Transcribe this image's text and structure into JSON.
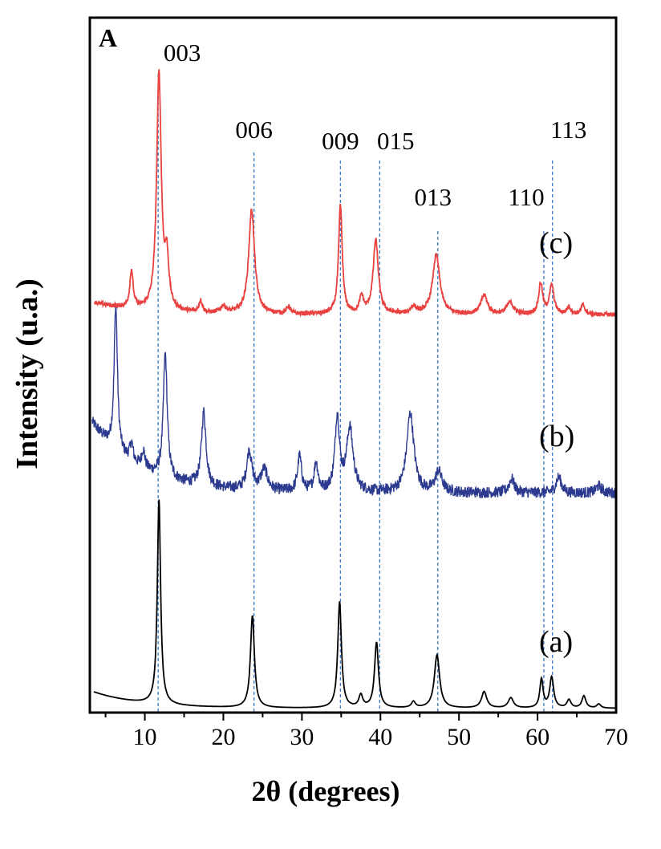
{
  "chart_data": {
    "type": "line",
    "panel_label": "A",
    "xlabel": "2θ (degrees)",
    "ylabel": "Intensity (u.a.)",
    "xlim": [
      3,
      70
    ],
    "x_ticks": [
      10,
      20,
      30,
      40,
      50,
      60,
      70
    ],
    "y_ticks_shown": false,
    "grid": false,
    "reference_lines": [
      {
        "label": "003",
        "x": 11.7
      },
      {
        "label": "006",
        "x": 23.9
      },
      {
        "label": "009",
        "x": 34.9
      },
      {
        "label": "015",
        "x": 39.9
      },
      {
        "label": "013",
        "x": 47.3
      },
      {
        "label": "110",
        "x": 60.8
      },
      {
        "label": "113",
        "x": 61.9
      }
    ],
    "series": [
      {
        "name": "(a)",
        "color": "#000000",
        "baseline": 0.5,
        "noise": 0.0,
        "peaks": [
          [
            11.8,
            100,
            0.25
          ],
          [
            23.7,
            45,
            0.3
          ],
          [
            34.8,
            52,
            0.28
          ],
          [
            37.5,
            6,
            0.3
          ],
          [
            39.5,
            32,
            0.3
          ],
          [
            44.2,
            3,
            0.3
          ],
          [
            47.2,
            26,
            0.4
          ],
          [
            53.2,
            8,
            0.4
          ],
          [
            56.6,
            5,
            0.4
          ],
          [
            60.5,
            14,
            0.25
          ],
          [
            61.8,
            15,
            0.3
          ],
          [
            64.0,
            4,
            0.3
          ],
          [
            65.9,
            6,
            0.3
          ],
          [
            67.8,
            2,
            0.3
          ]
        ],
        "slope_start": 8
      },
      {
        "name": "(b)",
        "color": "#2b3a8f",
        "baseline": 8,
        "noise": 3.2,
        "peaks": [
          [
            6.3,
            82,
            0.25
          ],
          [
            8.3,
            10,
            0.25
          ],
          [
            9.8,
            10,
            0.25
          ],
          [
            12.6,
            70,
            0.3
          ],
          [
            17.5,
            42,
            0.35
          ],
          [
            23.3,
            22,
            0.4
          ],
          [
            25.2,
            12,
            0.5
          ],
          [
            29.7,
            20,
            0.3
          ],
          [
            31.8,
            16,
            0.3
          ],
          [
            34.5,
            42,
            0.35
          ],
          [
            36.1,
            36,
            0.5
          ],
          [
            43.8,
            45,
            0.55
          ],
          [
            47.4,
            12,
            0.5
          ],
          [
            56.7,
            8,
            0.4
          ],
          [
            62.7,
            9,
            0.4
          ],
          [
            67.8,
            4,
            0.4
          ]
        ],
        "slope_start": 40
      },
      {
        "name": "(c)",
        "color": "#e8413f",
        "baseline": 4,
        "noise": 0.9,
        "peaks": [
          [
            8.3,
            16,
            0.25
          ],
          [
            11.8,
            100,
            0.35
          ],
          [
            12.8,
            20,
            0.3
          ],
          [
            17.1,
            5,
            0.25
          ],
          [
            20.0,
            3,
            0.4
          ],
          [
            23.6,
            44,
            0.45
          ],
          [
            28.3,
            3,
            0.3
          ],
          [
            34.9,
            46,
            0.28
          ],
          [
            37.6,
            7,
            0.3
          ],
          [
            39.4,
            31,
            0.4
          ],
          [
            44.2,
            3,
            0.4
          ],
          [
            47.1,
            25,
            0.55
          ],
          [
            53.2,
            8,
            0.5
          ],
          [
            56.5,
            5,
            0.5
          ],
          [
            60.4,
            13,
            0.3
          ],
          [
            61.8,
            12,
            0.35
          ],
          [
            64.0,
            3,
            0.3
          ],
          [
            65.8,
            4,
            0.3
          ]
        ],
        "slope_start": 5
      }
    ]
  }
}
